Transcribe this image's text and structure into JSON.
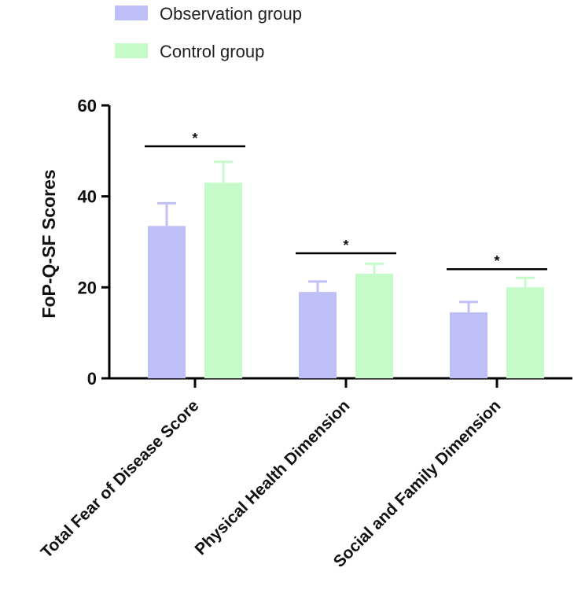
{
  "chart_data": {
    "type": "bar",
    "title": "",
    "xlabel": "",
    "ylabel": "FoP-Q-SF Scores",
    "ylim": [
      0,
      60
    ],
    "yticks": [
      0,
      20,
      40,
      60
    ],
    "categories": [
      "Total Fear of Disease Score",
      "Physical Health Dimension",
      "Social and Family Dimension"
    ],
    "series": [
      {
        "name": "Observation group",
        "color": "#bfbff7",
        "values": [
          33.5,
          19.0,
          14.5
        ],
        "errors": [
          5.0,
          2.3,
          2.3
        ]
      },
      {
        "name": "Control group",
        "color": "#c4fbc8",
        "values": [
          43.0,
          23.0,
          20.0
        ],
        "errors": [
          4.6,
          2.2,
          2.1
        ]
      }
    ],
    "significance": [
      {
        "category_index": 0,
        "label": "*",
        "y": 51
      },
      {
        "category_index": 1,
        "label": "*",
        "y": 27.5
      },
      {
        "category_index": 2,
        "label": "*",
        "y": 24
      }
    ],
    "legend_position": "top-left",
    "grid": false
  }
}
